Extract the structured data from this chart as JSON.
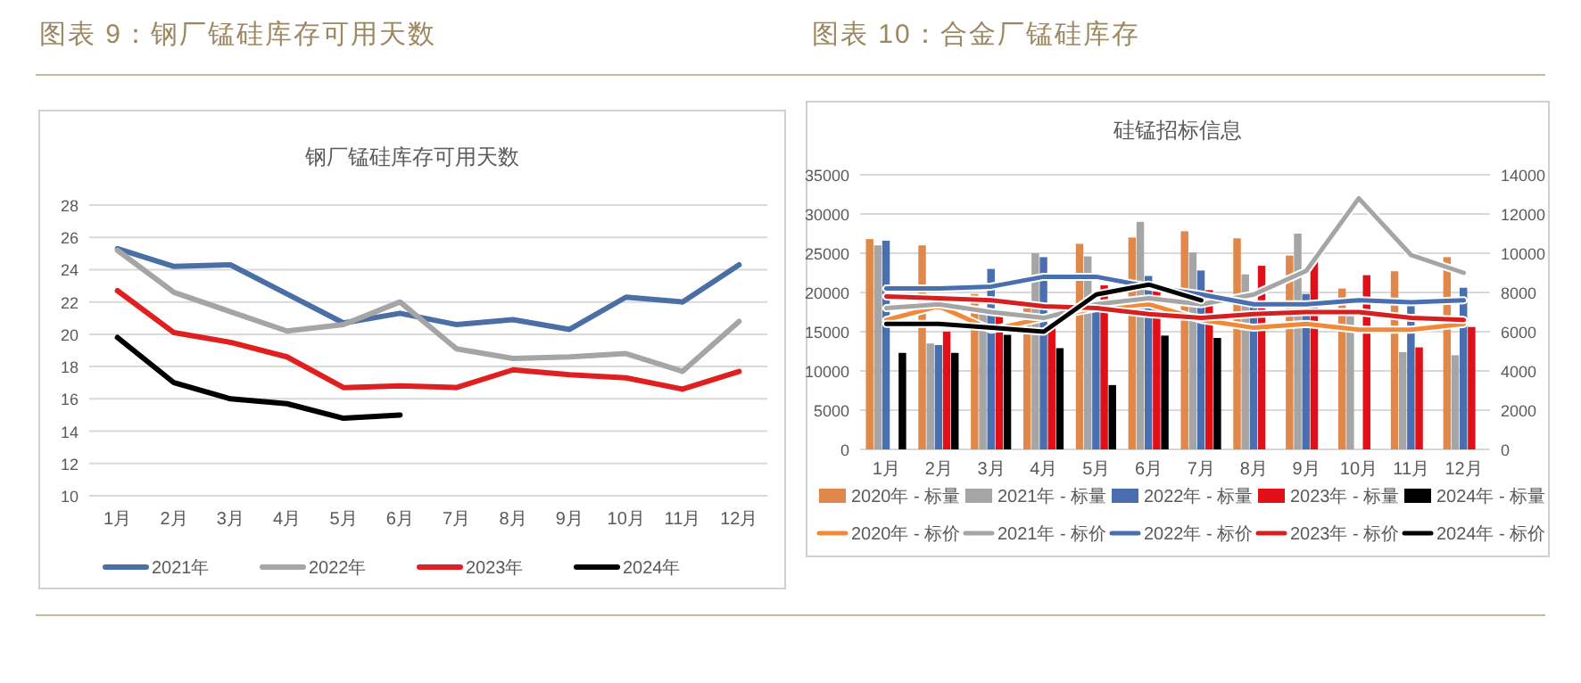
{
  "chart_data": [
    {
      "type": "line",
      "title": "图表 9：钢厂锰硅库存可用天数",
      "subtitle": "钢厂锰硅库存可用天数",
      "categories": [
        "1月",
        "2月",
        "3月",
        "4月",
        "5月",
        "6月",
        "7月",
        "8月",
        "9月",
        "10月",
        "11月",
        "12月"
      ],
      "ylim": [
        10,
        28
      ],
      "yticks": [
        10,
        12,
        14,
        16,
        18,
        20,
        22,
        24,
        26,
        28
      ],
      "grid": "y",
      "legend": "bottom",
      "series": [
        {
          "name": "2021年",
          "color": "#4a6fa5",
          "values": [
            25.3,
            24.2,
            24.3,
            22.5,
            20.7,
            21.3,
            20.6,
            20.9,
            20.3,
            22.3,
            22.0,
            24.3
          ]
        },
        {
          "name": "2022年",
          "color": "#a5a5a5",
          "values": [
            25.2,
            22.6,
            21.4,
            20.2,
            20.6,
            22.0,
            19.1,
            18.5,
            18.6,
            18.8,
            17.7,
            20.8
          ]
        },
        {
          "name": "2023年",
          "color": "#e02020",
          "values": [
            22.7,
            20.1,
            19.5,
            18.6,
            16.7,
            16.8,
            16.7,
            17.8,
            17.5,
            17.3,
            16.6,
            17.7
          ]
        },
        {
          "name": "2024年",
          "color": "#000000",
          "values": [
            19.8,
            17.0,
            16.0,
            15.7,
            14.8,
            15.0,
            null,
            null,
            null,
            null,
            null,
            null
          ]
        }
      ]
    },
    {
      "type": "bar",
      "title": "图表 10：合金厂锰硅库存",
      "subtitle": "硅锰招标信息",
      "categories": [
        "1月",
        "2月",
        "3月",
        "4月",
        "5月",
        "6月",
        "7月",
        "8月",
        "9月",
        "10月",
        "11月",
        "12月"
      ],
      "ylim": [
        0,
        35000
      ],
      "yticks": [
        0,
        5000,
        10000,
        15000,
        20000,
        25000,
        30000,
        35000
      ],
      "y2lim": [
        0,
        14000
      ],
      "y2ticks": [
        0,
        2000,
        4000,
        6000,
        8000,
        10000,
        12000,
        14000
      ],
      "grid": "y",
      "legend": "bottom",
      "series": [
        {
          "name": "2020年 - 标量",
          "color": "#e0884a",
          "values": [
            26800,
            26000,
            19800,
            18000,
            26200,
            27000,
            27800,
            26900,
            24700,
            20500,
            22700,
            24500
          ]
        },
        {
          "name": "2021年 - 标量",
          "color": "#a5a5a5",
          "values": [
            26000,
            13500,
            17500,
            25000,
            24600,
            29000,
            25100,
            22300,
            27500,
            17000,
            12400,
            12000
          ]
        },
        {
          "name": "2022年 - 标量",
          "color": "#4a6fb0",
          "values": [
            26600,
            13300,
            23000,
            24500,
            19000,
            22100,
            22800,
            19000,
            19800,
            null,
            18500,
            20600
          ]
        },
        {
          "name": "2023年 - 标量",
          "color": "#e01018",
          "values": [
            null,
            15000,
            17000,
            16000,
            20900,
            20300,
            20300,
            23400,
            24200,
            22200,
            13000,
            15600
          ]
        },
        {
          "name": "2024年 - 标量",
          "color": "#000000",
          "values": [
            12300,
            12300,
            14600,
            12900,
            8200,
            14500,
            14200,
            null,
            null,
            null,
            null,
            null
          ]
        },
        {
          "name": "2020年 - 标价",
          "type": "line",
          "axis": "y2",
          "color": "#f08a3a",
          "values": [
            6600,
            7300,
            6100,
            6700,
            7200,
            7400,
            6600,
            6200,
            6400,
            6100,
            6100,
            6400
          ]
        },
        {
          "name": "2021年 - 标价",
          "type": "line",
          "axis": "y2",
          "color": "#a5a5a5",
          "values": [
            7200,
            7400,
            7000,
            6700,
            7400,
            7700,
            7400,
            7900,
            9100,
            12800,
            9900,
            9000
          ]
        },
        {
          "name": "2022年 - 标价",
          "type": "line",
          "axis": "y2",
          "color": "#4a6fb0",
          "values": [
            8200,
            8200,
            8300,
            8800,
            8800,
            8300,
            7900,
            7400,
            7400,
            7600,
            7500,
            7600
          ]
        },
        {
          "name": "2023年 - 标价",
          "type": "line",
          "axis": "y2",
          "color": "#d42020",
          "values": [
            7800,
            7700,
            7600,
            7300,
            7200,
            6900,
            6700,
            6900,
            7000,
            7000,
            6700,
            6600
          ]
        },
        {
          "name": "2024年 - 标价",
          "type": "line",
          "axis": "y2",
          "color": "#000000",
          "values": [
            6400,
            6400,
            6200,
            6000,
            7900,
            8400,
            7600,
            null,
            null,
            null,
            null,
            null
          ]
        }
      ]
    }
  ]
}
